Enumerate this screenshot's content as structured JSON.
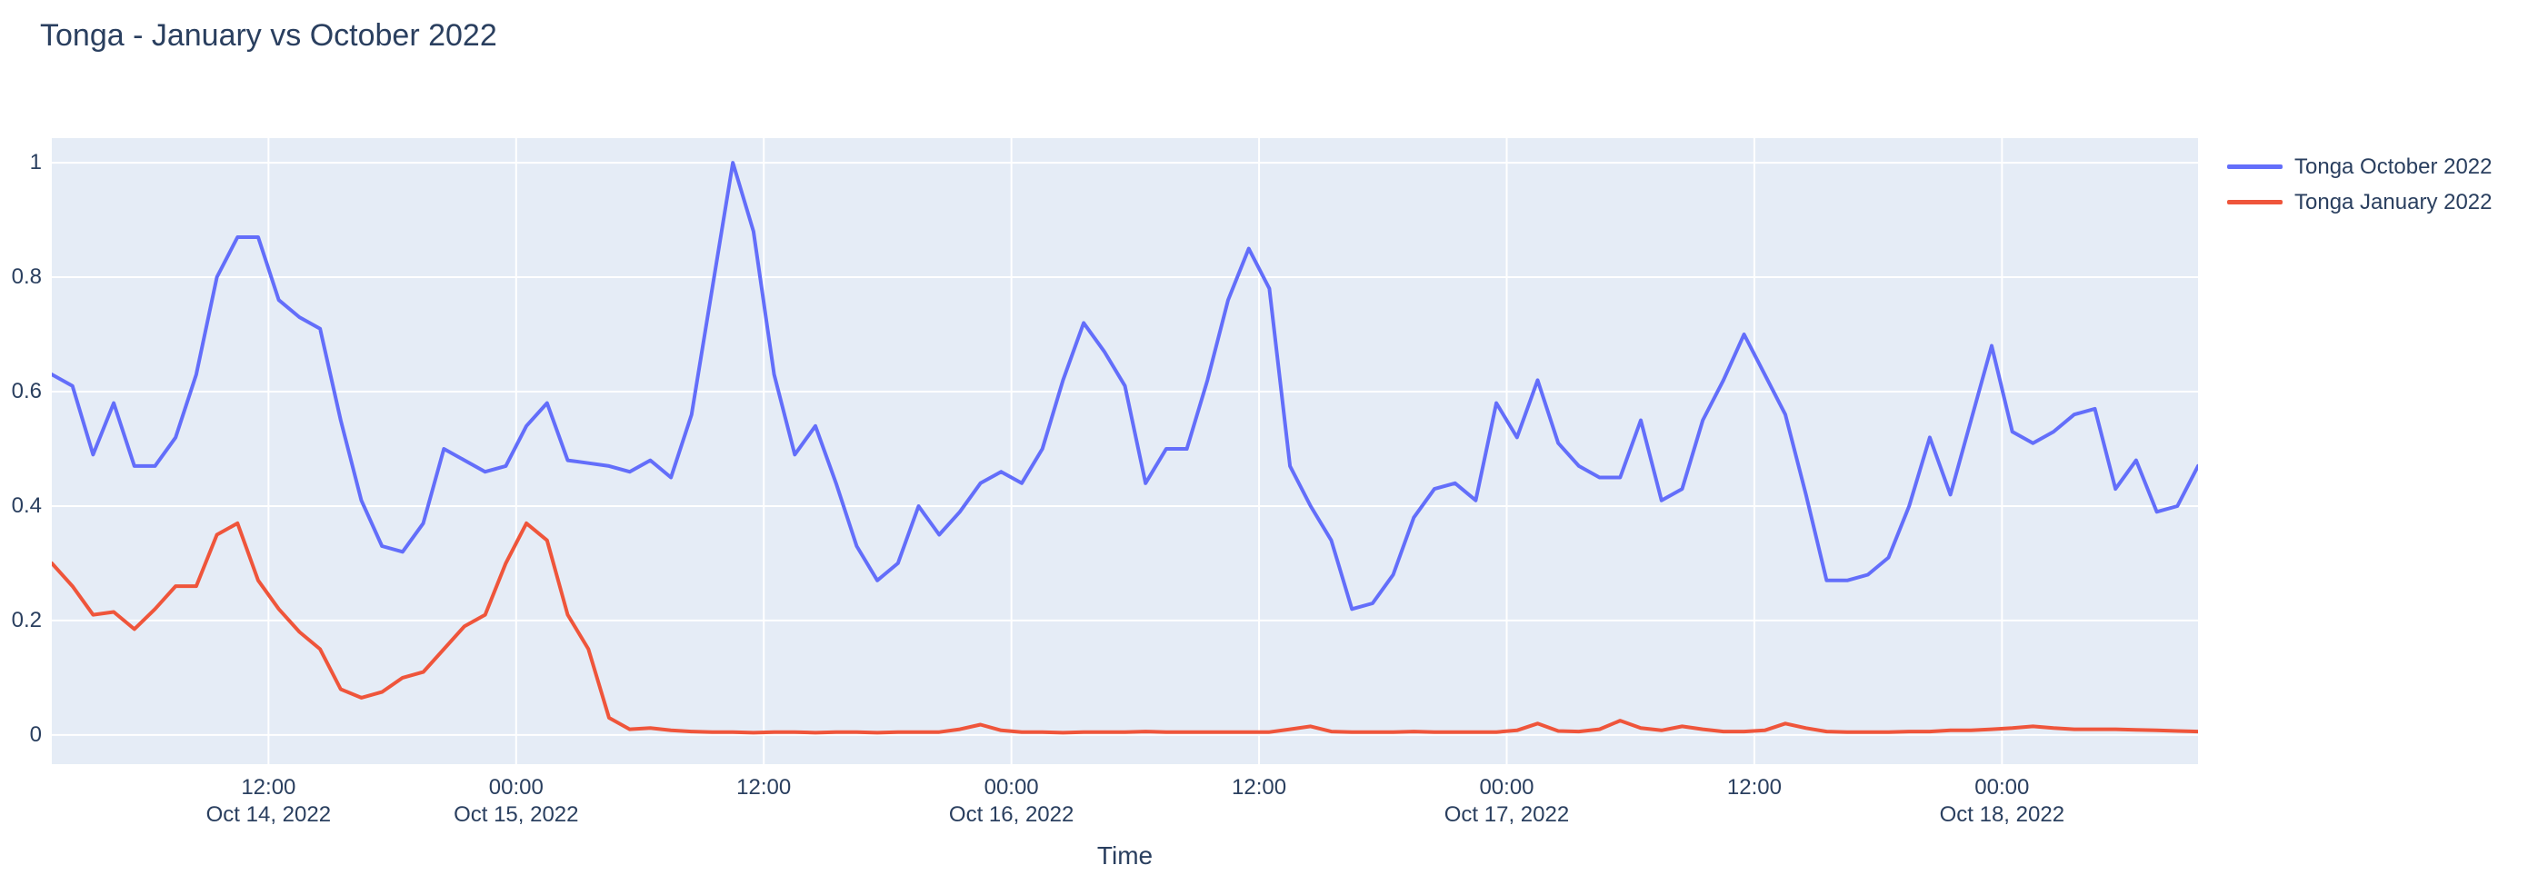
{
  "title": "Tonga - January vs October 2022",
  "colors": {
    "background": "#ffffff",
    "plot_background": "#E5ECF6",
    "grid": "#ffffff",
    "text": "#2a3f5f",
    "trace_october": "#636EFA",
    "trace_january": "#EF553B"
  },
  "legend": {
    "items": [
      {
        "label": "Tonga October 2022",
        "color": "#636EFA"
      },
      {
        "label": "Tonga January 2022",
        "color": "#EF553B"
      }
    ]
  },
  "axes": {
    "x": {
      "title": "Time",
      "ticks": [
        {
          "hour": 10.5,
          "time": "12:00",
          "date": "Oct 14, 2022"
        },
        {
          "hour": 22.5,
          "time": "00:00",
          "date": "Oct 15, 2022"
        },
        {
          "hour": 34.5,
          "time": "12:00",
          "date": ""
        },
        {
          "hour": 46.5,
          "time": "00:00",
          "date": "Oct 16, 2022"
        },
        {
          "hour": 58.5,
          "time": "12:00",
          "date": ""
        },
        {
          "hour": 70.5,
          "time": "00:00",
          "date": "Oct 17, 2022"
        },
        {
          "hour": 82.5,
          "time": "12:00",
          "date": ""
        },
        {
          "hour": 94.5,
          "time": "00:00",
          "date": "Oct 18, 2022"
        }
      ]
    },
    "y": {
      "ticks": [
        {
          "value": 0,
          "label": "0"
        },
        {
          "value": 0.2,
          "label": "0.2"
        },
        {
          "value": 0.4,
          "label": "0.4"
        },
        {
          "value": 0.6,
          "label": "0.6"
        },
        {
          "value": 0.8,
          "label": "0.8"
        },
        {
          "value": 1,
          "label": "1"
        }
      ]
    }
  },
  "chart_data": {
    "type": "line",
    "title": "Tonga - January vs October 2022",
    "xlabel": "Time",
    "ylabel": "",
    "grid": true,
    "legend_position": "right-top",
    "x_start": "2022-10-14 01:30",
    "x_end": "2022-10-18 09:30",
    "x_step_hours": 1,
    "n_points": 105,
    "xlim_hours": [
      0,
      104
    ],
    "ylim": [
      -0.051,
      1.043
    ],
    "series": [
      {
        "name": "Tonga October 2022",
        "color": "#636EFA",
        "values": [
          0.63,
          0.61,
          0.49,
          0.58,
          0.47,
          0.47,
          0.52,
          0.63,
          0.8,
          0.87,
          0.87,
          0.76,
          0.73,
          0.71,
          0.55,
          0.41,
          0.33,
          0.32,
          0.37,
          0.5,
          0.48,
          0.46,
          0.47,
          0.54,
          0.58,
          0.48,
          0.475,
          0.47,
          0.46,
          0.48,
          0.45,
          0.56,
          0.78,
          1.0,
          0.88,
          0.63,
          0.49,
          0.54,
          0.44,
          0.33,
          0.27,
          0.3,
          0.4,
          0.35,
          0.39,
          0.44,
          0.46,
          0.44,
          0.5,
          0.62,
          0.72,
          0.67,
          0.61,
          0.44,
          0.5,
          0.5,
          0.62,
          0.76,
          0.85,
          0.78,
          0.47,
          0.4,
          0.34,
          0.22,
          0.23,
          0.28,
          0.38,
          0.43,
          0.44,
          0.41,
          0.58,
          0.52,
          0.62,
          0.51,
          0.47,
          0.45,
          0.45,
          0.55,
          0.41,
          0.43,
          0.55,
          0.62,
          0.7,
          0.63,
          0.56,
          0.42,
          0.27,
          0.27,
          0.28,
          0.31,
          0.4,
          0.52,
          0.42,
          0.55,
          0.68,
          0.53,
          0.51,
          0.53,
          0.56,
          0.57,
          0.43,
          0.48,
          0.39,
          0.4,
          0.47
        ]
      },
      {
        "name": "Tonga January 2022",
        "color": "#EF553B",
        "values": [
          0.3,
          0.26,
          0.21,
          0.215,
          0.185,
          0.22,
          0.26,
          0.26,
          0.35,
          0.37,
          0.27,
          0.22,
          0.18,
          0.15,
          0.08,
          0.065,
          0.075,
          0.1,
          0.11,
          0.15,
          0.19,
          0.21,
          0.3,
          0.37,
          0.34,
          0.21,
          0.15,
          0.03,
          0.01,
          0.012,
          0.008,
          0.006,
          0.005,
          0.005,
          0.004,
          0.005,
          0.005,
          0.004,
          0.005,
          0.005,
          0.004,
          0.005,
          0.005,
          0.005,
          0.01,
          0.018,
          0.008,
          0.005,
          0.005,
          0.004,
          0.005,
          0.005,
          0.005,
          0.006,
          0.005,
          0.005,
          0.005,
          0.005,
          0.005,
          0.005,
          0.01,
          0.015,
          0.006,
          0.005,
          0.005,
          0.005,
          0.006,
          0.005,
          0.005,
          0.005,
          0.005,
          0.008,
          0.02,
          0.007,
          0.006,
          0.01,
          0.025,
          0.012,
          0.008,
          0.015,
          0.01,
          0.006,
          0.006,
          0.008,
          0.02,
          0.012,
          0.006,
          0.005,
          0.005,
          0.005,
          0.006,
          0.006,
          0.008,
          0.008,
          0.01,
          0.012,
          0.015,
          0.012,
          0.01,
          0.01,
          0.01,
          0.009,
          0.008,
          0.007,
          0.006
        ]
      }
    ]
  }
}
